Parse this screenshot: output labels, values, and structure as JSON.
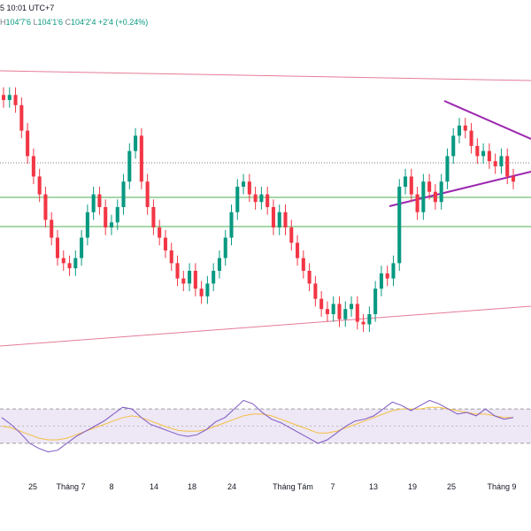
{
  "header": {
    "time": "5 10:01 UTC+7",
    "high_label": "H",
    "high": "104'7'6",
    "low_label": "L",
    "low": "104'1'6",
    "close_label": "C",
    "close": "104'2'4",
    "change": "+2'4 (+0.24%)"
  },
  "colors": {
    "up": "#089981",
    "down": "#f23645",
    "channel": "#e57c97",
    "triangle": "#9c27b0",
    "support": "#4caf50",
    "rsi": "#7e57c2",
    "rsi_ma": "#f5c043",
    "rsi_band": "#ede7f6",
    "dotted": "#787b86"
  },
  "chart_data": [
    {
      "type": "candlestick",
      "title": "",
      "x_ticks": [
        "25",
        "Tháng 7",
        "8",
        "14",
        "18",
        "24",
        "Tháng Tám",
        "7",
        "13",
        "19",
        "25",
        "Tháng 9"
      ],
      "y_unit": "relative price index (0 = lowest, 100 = highest in view)",
      "ylim": [
        0,
        100
      ],
      "close_series": [
        92,
        94,
        90,
        80,
        70,
        62,
        55,
        45,
        38,
        30,
        28,
        26,
        30,
        38,
        48,
        55,
        50,
        42,
        44,
        50,
        60,
        72,
        78,
        60,
        50,
        42,
        38,
        33,
        28,
        22,
        20,
        25,
        18,
        15,
        20,
        25,
        30,
        38,
        48,
        58,
        60,
        55,
        52,
        55,
        50,
        42,
        48,
        42,
        36,
        30,
        25,
        20,
        14,
        10,
        8,
        12,
        6,
        10,
        12,
        5,
        4,
        8,
        18,
        24,
        22,
        28,
        58,
        62,
        55,
        48,
        60,
        56,
        52,
        60,
        70,
        78,
        82,
        80,
        74,
        70,
        72,
        68,
        66,
        70,
        62,
        60
      ],
      "overlays": [
        {
          "type": "trendline",
          "name": "upper channel"
        },
        {
          "type": "trendline",
          "name": "lower channel"
        },
        {
          "type": "horizontal",
          "name": "support 1"
        },
        {
          "type": "horizontal",
          "name": "support 2"
        },
        {
          "type": "horizontal-dotted",
          "name": "last price"
        },
        {
          "type": "symmetrical-triangle",
          "name": "triangle"
        }
      ]
    },
    {
      "type": "line",
      "title": "",
      "series": [
        {
          "values": [
            60,
            52,
            42,
            30,
            24,
            20,
            22,
            30,
            38,
            44,
            50,
            56,
            64,
            72,
            70,
            60,
            52,
            48,
            44,
            40,
            38,
            40,
            46,
            55,
            60,
            70,
            80,
            76,
            66,
            58,
            54,
            48,
            42,
            36,
            30,
            34,
            42,
            50,
            56,
            58,
            62,
            70,
            78,
            74,
            68,
            74,
            80,
            76,
            70,
            64,
            66,
            62,
            70,
            62,
            58,
            60
          ]
        },
        {
          "values": [
            50,
            48,
            44,
            40,
            36,
            34,
            34,
            36,
            40,
            44,
            48,
            52,
            56,
            60,
            62,
            60,
            56,
            52,
            48,
            45,
            44,
            44,
            46,
            50,
            54,
            58,
            62,
            64,
            64,
            62,
            58,
            54,
            50,
            46,
            42,
            42,
            44,
            48,
            52,
            56,
            60,
            64,
            68,
            70,
            70,
            70,
            72,
            72,
            70,
            68,
            66,
            64,
            64,
            62,
            60,
            60
          ]
        }
      ],
      "ylim": [
        0,
        100
      ],
      "bands": [
        30,
        70
      ]
    }
  ]
}
